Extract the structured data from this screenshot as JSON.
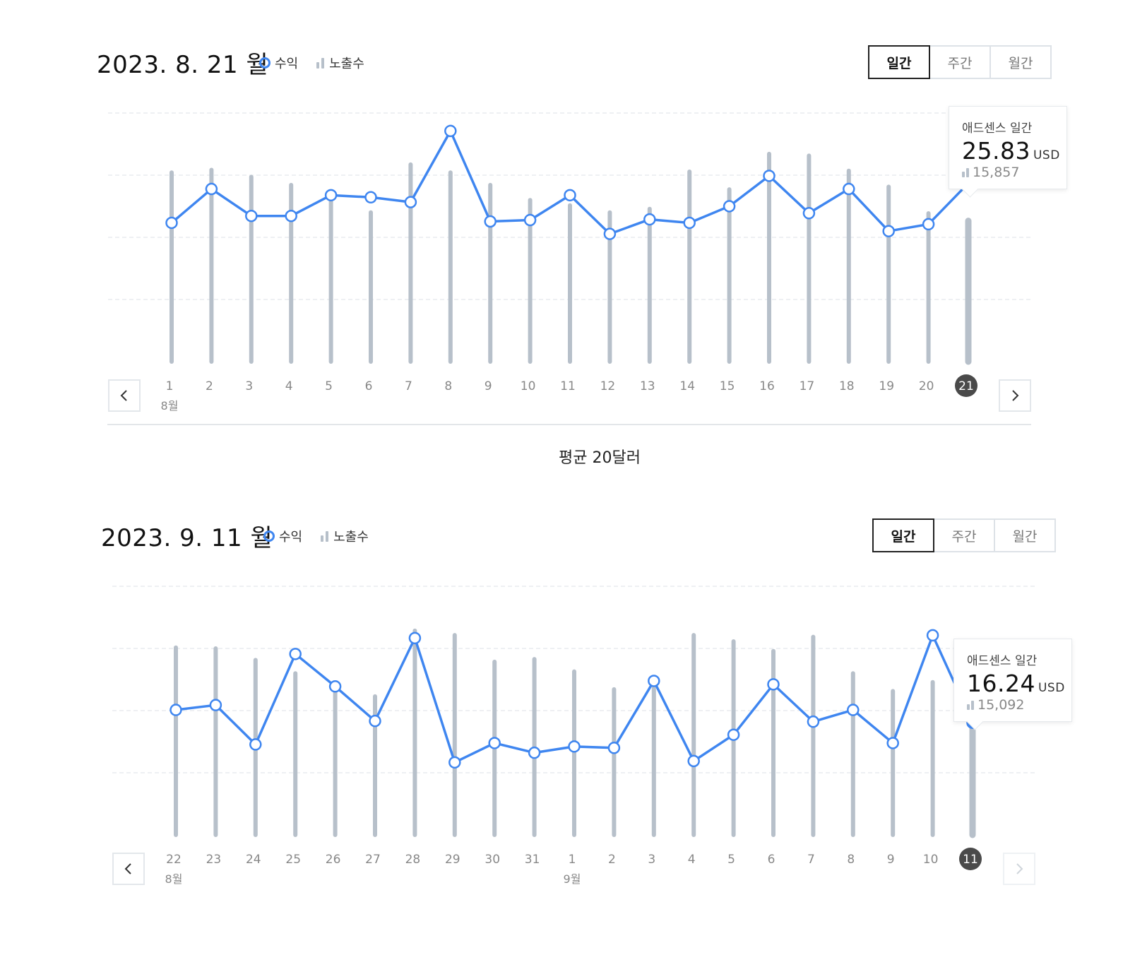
{
  "avg_text": "평균 20달러",
  "legend": {
    "revenue": "수익",
    "impressions": "노출수"
  },
  "colors": {
    "line": "#3f86f0",
    "bar": "#b7c0ca",
    "selected_label_bg": "#4a4a4a"
  },
  "icons": {
    "prev": "chevron-left-icon",
    "next": "chevron-right-icon"
  },
  "panels": [
    {
      "date_title": "2023. 8. 21 월",
      "toggle": [
        "일간",
        "주간",
        "월간"
      ],
      "active_toggle": "일간",
      "tooltip": {
        "label": "애드센스 일간",
        "value": "25.83",
        "unit": "USD",
        "impressions": "15,857"
      },
      "next_enabled": true
    },
    {
      "date_title": "2023. 9. 11 월",
      "toggle": [
        "일간",
        "주간",
        "월간"
      ],
      "active_toggle": "일간",
      "tooltip": {
        "label": "애드센스 일간",
        "value": "16.24",
        "unit": "USD",
        "impressions": "15,092"
      },
      "next_enabled": false
    }
  ],
  "chart_data": [
    {
      "type": "line+bar",
      "x": [
        "1",
        "2",
        "3",
        "4",
        "5",
        "6",
        "7",
        "8",
        "9",
        "10",
        "11",
        "12",
        "13",
        "14",
        "15",
        "16",
        "17",
        "18",
        "19",
        "20",
        "21"
      ],
      "month_labels": [
        {
          "at": "1",
          "label": "8월"
        }
      ],
      "selected": "21",
      "series": [
        {
          "name": "수익",
          "type": "line",
          "values": [
            20.1,
            25.0,
            21.1,
            21.1,
            24.1,
            23.8,
            23.1,
            33.4,
            20.3,
            20.5,
            24.1,
            18.5,
            20.6,
            20.1,
            22.5,
            26.9,
            21.5,
            25.0,
            18.9,
            19.9,
            25.83
          ]
        },
        {
          "name": "노출수",
          "type": "bar",
          "values": [
            21300,
            21600,
            20800,
            19900,
            18200,
            16800,
            22200,
            21300,
            19900,
            18200,
            17600,
            16800,
            17200,
            21400,
            19400,
            23400,
            23200,
            21500,
            19700,
            16700,
            15857
          ]
        }
      ]
    },
    {
      "type": "line+bar",
      "x": [
        "22",
        "23",
        "24",
        "25",
        "26",
        "27",
        "28",
        "29",
        "30",
        "31",
        "1",
        "2",
        "3",
        "4",
        "5",
        "6",
        "7",
        "8",
        "9",
        "10",
        "11"
      ],
      "month_labels": [
        {
          "at": "22",
          "label": "8월"
        },
        {
          "at": "1",
          "label": "9월"
        }
      ],
      "selected": "11",
      "series": [
        {
          "name": "수익",
          "type": "line",
          "values": [
            18.1,
            18.8,
            13.1,
            26.2,
            21.5,
            16.5,
            28.5,
            10.5,
            13.3,
            11.9,
            12.8,
            12.6,
            22.3,
            10.7,
            14.5,
            21.8,
            16.4,
            18.1,
            13.3,
            28.9,
            16.24
          ]
        },
        {
          "name": "노출수",
          "type": "bar",
          "values": [
            21100,
            21000,
            19700,
            18200,
            16000,
            15600,
            23000,
            22500,
            19500,
            19800,
            18400,
            16400,
            17500,
            22500,
            21800,
            20700,
            22300,
            18200,
            16200,
            17200,
            15092
          ]
        }
      ]
    }
  ]
}
